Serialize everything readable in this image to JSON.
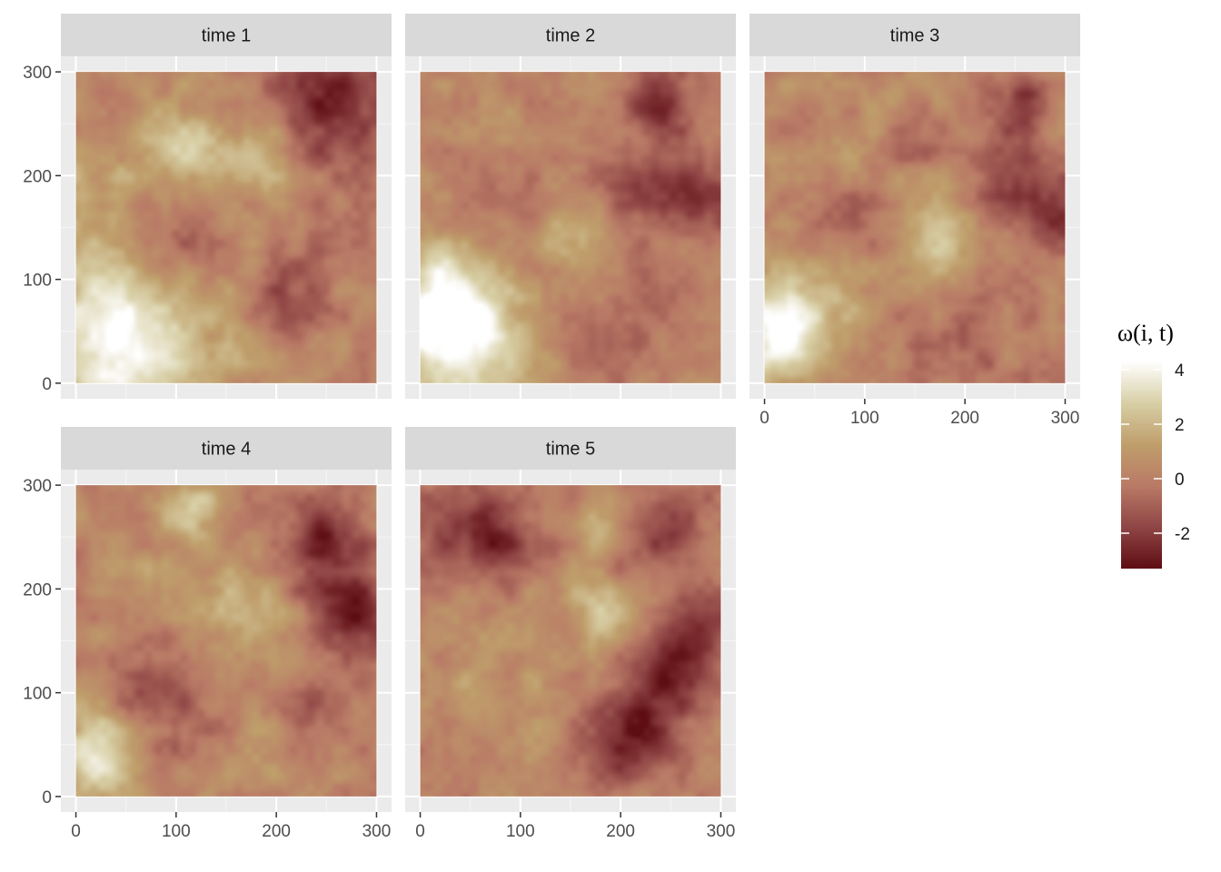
{
  "chart_data": {
    "type": "heatmap",
    "facets": [
      {
        "label": "time 1",
        "blobs": [
          [
            30,
            40,
            60,
            4.2
          ],
          [
            105,
            225,
            30,
            2.6
          ],
          [
            185,
            215,
            25,
            2.2
          ],
          [
            20,
            200,
            30,
            1.2
          ],
          [
            95,
            150,
            35,
            -1.6
          ],
          [
            215,
            75,
            25,
            -2.0
          ],
          [
            255,
            275,
            45,
            -2.8
          ],
          [
            150,
            30,
            40,
            0.6
          ],
          [
            160,
            160,
            50,
            0.3
          ],
          [
            230,
            150,
            40,
            -0.6
          ]
        ]
      },
      {
        "label": "time 2",
        "blobs": [
          [
            20,
            70,
            40,
            4.4
          ],
          [
            60,
            30,
            50,
            2.0
          ],
          [
            150,
            140,
            25,
            2.0
          ],
          [
            240,
            275,
            25,
            -2.4
          ],
          [
            285,
            180,
            25,
            -2.6
          ],
          [
            220,
            190,
            30,
            -1.5
          ],
          [
            100,
            150,
            40,
            -0.8
          ],
          [
            180,
            60,
            50,
            -0.5
          ],
          [
            60,
            220,
            40,
            0.3
          ],
          [
            230,
            110,
            40,
            -0.3
          ]
        ]
      },
      {
        "label": "time 3",
        "blobs": [
          [
            20,
            50,
            35,
            4.2
          ],
          [
            170,
            140,
            35,
            2.2
          ],
          [
            110,
            230,
            40,
            0.5
          ],
          [
            255,
            270,
            20,
            -2.5
          ],
          [
            240,
            195,
            25,
            -2.0
          ],
          [
            290,
            165,
            25,
            -2.7
          ],
          [
            145,
            240,
            20,
            -1.6
          ],
          [
            90,
            150,
            30,
            -1.2
          ],
          [
            200,
            40,
            50,
            -0.8
          ],
          [
            50,
            100,
            50,
            0.5
          ]
        ]
      },
      {
        "label": "time 4",
        "blobs": [
          [
            20,
            40,
            30,
            3.2
          ],
          [
            115,
            275,
            20,
            2.6
          ],
          [
            165,
            175,
            35,
            1.7
          ],
          [
            60,
            220,
            40,
            0.5
          ],
          [
            90,
            95,
            35,
            -1.8
          ],
          [
            230,
            85,
            20,
            -1.5
          ],
          [
            280,
            170,
            30,
            -2.8
          ],
          [
            250,
            255,
            25,
            -2.2
          ],
          [
            250,
            220,
            30,
            -1.5
          ],
          [
            160,
            40,
            40,
            0.4
          ],
          [
            180,
            120,
            40,
            0.0
          ]
        ]
      },
      {
        "label": "time 5",
        "blobs": [
          [
            180,
            175,
            22,
            2.4
          ],
          [
            40,
            260,
            35,
            -2.0
          ],
          [
            90,
            245,
            25,
            -1.9
          ],
          [
            240,
            255,
            30,
            -2.2
          ],
          [
            210,
            55,
            30,
            -3.2
          ],
          [
            245,
            120,
            30,
            -2.6
          ],
          [
            280,
            160,
            25,
            -2.5
          ],
          [
            120,
            120,
            40,
            0.3
          ],
          [
            60,
            100,
            50,
            0.5
          ],
          [
            180,
            260,
            20,
            1.4
          ]
        ]
      }
    ],
    "x_ticks": [
      0,
      100,
      200,
      300
    ],
    "y_ticks": [
      0,
      100,
      200,
      300
    ],
    "xlim": [
      -15,
      315
    ],
    "ylim": [
      -15,
      315
    ],
    "legend": {
      "title": "ω(i, t)",
      "ticks": [
        4,
        2,
        0,
        -2
      ],
      "tick_labels": [
        "4",
        "2",
        "0",
        "-2"
      ],
      "range": [
        -3.3,
        4.3
      ],
      "colors": [
        "#5e0e13",
        "#8f4545",
        "#b97a66",
        "#bf9e6b",
        "#d8cfa6",
        "#ffffff"
      ],
      "placement": "right"
    },
    "grid": true
  }
}
